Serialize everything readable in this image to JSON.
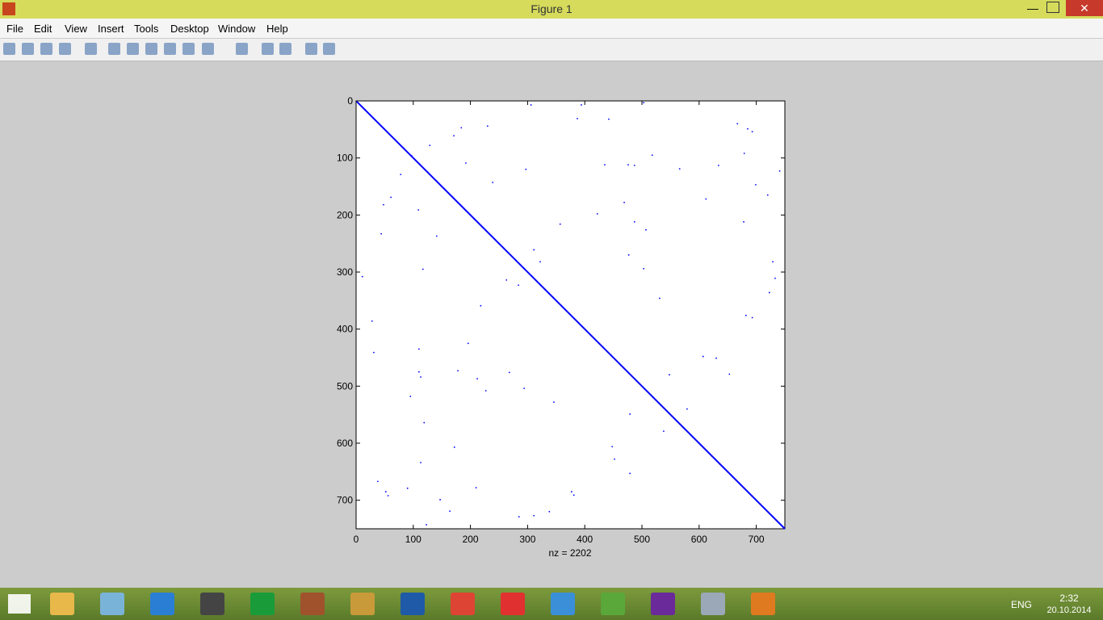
{
  "window": {
    "title": "Figure 1"
  },
  "menu": [
    "File",
    "Edit",
    "View",
    "Insert",
    "Tools",
    "Desktop",
    "Window",
    "Help"
  ],
  "chart_data": {
    "type": "spy",
    "xlabel": "nz = 2202",
    "xlim": [
      0,
      750
    ],
    "ylim": [
      0,
      750
    ],
    "y_reversed": true,
    "xticks": [
      0,
      100,
      200,
      300,
      400,
      500,
      600,
      700
    ],
    "yticks": [
      0,
      100,
      200,
      300,
      400,
      500,
      600,
      700
    ],
    "series": [
      {
        "color": "#0000ff",
        "x": [
          306,
          394,
          503,
          387,
          442,
          230,
          184,
          171,
          667,
          685,
          693,
          129,
          679,
          518,
          97,
          192,
          435,
          476,
          487,
          566,
          297,
          741,
          78,
          634,
          239,
          699,
          720,
          612,
          61,
          48,
          469,
          109,
          422,
          678,
          487,
          357,
          507,
          141,
          44,
          311,
          477,
          322,
          729,
          117,
          503,
          11,
          263,
          733,
          284,
          531,
          218,
          682,
          693,
          723,
          28,
          110,
          31,
          196,
          607,
          630,
          110,
          268,
          548,
          653,
          113,
          178,
          212,
          227,
          294,
          95,
          346,
          579,
          479,
          119,
          538,
          448,
          172,
          452,
          113,
          479,
          210,
          90,
          38,
          52,
          56,
          377,
          381,
          147,
          164,
          123,
          285,
          311,
          338
        ],
        "y": [
          7,
          7,
          3,
          31,
          32,
          44,
          47,
          61,
          40,
          49,
          54,
          78,
          92,
          95,
          96,
          109,
          112,
          112,
          113,
          119,
          120,
          123,
          129,
          113,
          143,
          147,
          165,
          172,
          169,
          182,
          178,
          191,
          198,
          212,
          212,
          216,
          226,
          237,
          233,
          261,
          270,
          282,
          282,
          295,
          294,
          308,
          314,
          311,
          323,
          346,
          359,
          376,
          380,
          336,
          386,
          435,
          441,
          425,
          448,
          451,
          475,
          476,
          480,
          479,
          484,
          473,
          487,
          508,
          504,
          518,
          528,
          540,
          549,
          564,
          579,
          606,
          607,
          628,
          634,
          653,
          678,
          679,
          667,
          685,
          692,
          685,
          691,
          699,
          719,
          743,
          729,
          727,
          720
        ]
      },
      {
        "color": "#0000ff",
        "x": [
          1,
          750
        ],
        "y": [
          1,
          750
        ]
      }
    ]
  },
  "taskbar": {
    "language": "ENG",
    "time": "2:32",
    "date": "20.10.2014"
  }
}
